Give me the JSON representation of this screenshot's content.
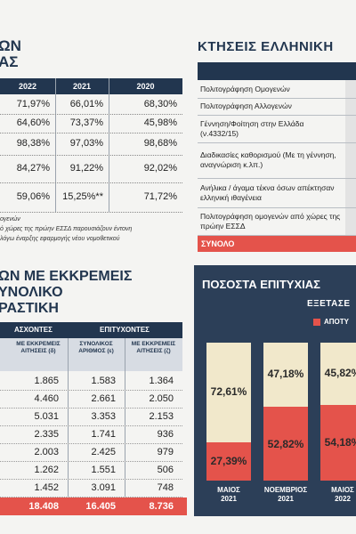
{
  "left_table": {
    "title_lines": [
      "ΩΝ",
      "ΑΣ"
    ],
    "header": [
      "2022",
      "2021",
      "2020"
    ],
    "rows": [
      [
        "71,97%",
        "66,01%",
        "68,30%"
      ],
      [
        "64,60%",
        "73,37%",
        "45,98%"
      ],
      [
        "98,38%",
        "97,03%",
        "98,68%"
      ],
      [
        "84,27%",
        "91,22%",
        "92,02%"
      ],
      [
        "59,06%",
        "15,25%**",
        "71,72%"
      ]
    ],
    "footnote_lines": [
      "ογενών",
      "ό χώρες της πρώην ΕΣΣΔ παρουσιάζουν έντονη",
      "λόγω έναρξης εφαρμογής νέου νομοθετικού"
    ]
  },
  "right_table": {
    "title": "ΚΤΗΣΕΙΣ ΕΛΛΗΝΙΚΗ",
    "rows": [
      "Πολιτογράφηση Ομογενών",
      "Πολιτογράφηση Αλλογενών",
      "Γέννηση/Φοίτηση στην Ελλάδα (ν.4332/15)",
      "Διαδικασίες καθορισμού (Με τη γέννηση, αναγνώριση κ.λπ.)",
      "Ανήλικα / άγαμα τέκνα όσων απέκτησαν ελληνική ιθαγένεια",
      "Πολιτογράφηση ομογενών από χώρες της πρώην ΕΣΣΔ"
    ],
    "total_label": "ΣΥΝΟΛΟ"
  },
  "pending_table": {
    "title_lines": [
      "ΩΝ ΜΕ ΕΚΚΡΕΜΕΙΣ",
      "ΥΝΟΛΙΚΟ",
      "ΡΑΣΤΙΚΗ"
    ],
    "group_headers": [
      "ΑΣΧΟΝΤΕΣ",
      "ΕΠΙΤΥΧΟΝΤΕΣ"
    ],
    "column_headers": [
      "ΜΕ ΕΚΚΡΕΜΕΙΣ ΑΙΤΗΣΕΙΣ (δ)",
      "ΣΥΝΟΛΙΚΟΣ ΑΡΙΘΜΟΣ (ε)",
      "ΜΕ ΕΚΚΡΕΜΕΙΣ ΑΙΤΗΣΕΙΣ (ζ)"
    ],
    "rows": [
      [
        "1.865",
        "1.583",
        "1.364"
      ],
      [
        "4.460",
        "2.661",
        "2.050"
      ],
      [
        "5.031",
        "3.353",
        "2.153"
      ],
      [
        "2.335",
        "1.741",
        "936"
      ],
      [
        "2.003",
        "2.425",
        "979"
      ],
      [
        "1.262",
        "1.551",
        "506"
      ],
      [
        "1.452",
        "3.091",
        "748"
      ]
    ],
    "totals": [
      "18.408",
      "16.405",
      "8.736"
    ]
  },
  "chart_data": {
    "type": "bar",
    "stacked": true,
    "title": "ΠΟΣΟΣΤΑ ΕΠΙΤΥΧΙΑΣ",
    "subtitle": "ΕΞΕΤΑΣΕ",
    "categories": [
      "ΜΑΙΟΣ 2021",
      "ΝΟΕΜΒΡΙΟΣ 2021",
      "ΜΑΙΟΣ 2022"
    ],
    "ylim": [
      0,
      100
    ],
    "series": [
      {
        "name": "ΑΠΟΤΥ",
        "color": "#e4534b",
        "values": [
          27.39,
          52.82,
          54.18
        ],
        "value_labels": [
          "27,39%",
          "52,82%",
          "54,18%"
        ]
      },
      {
        "color": "#f1e8cb",
        "values": [
          72.61,
          47.18,
          45.82
        ],
        "value_labels": [
          "72,61%",
          "47,18%",
          "45,82%"
        ]
      }
    ]
  }
}
